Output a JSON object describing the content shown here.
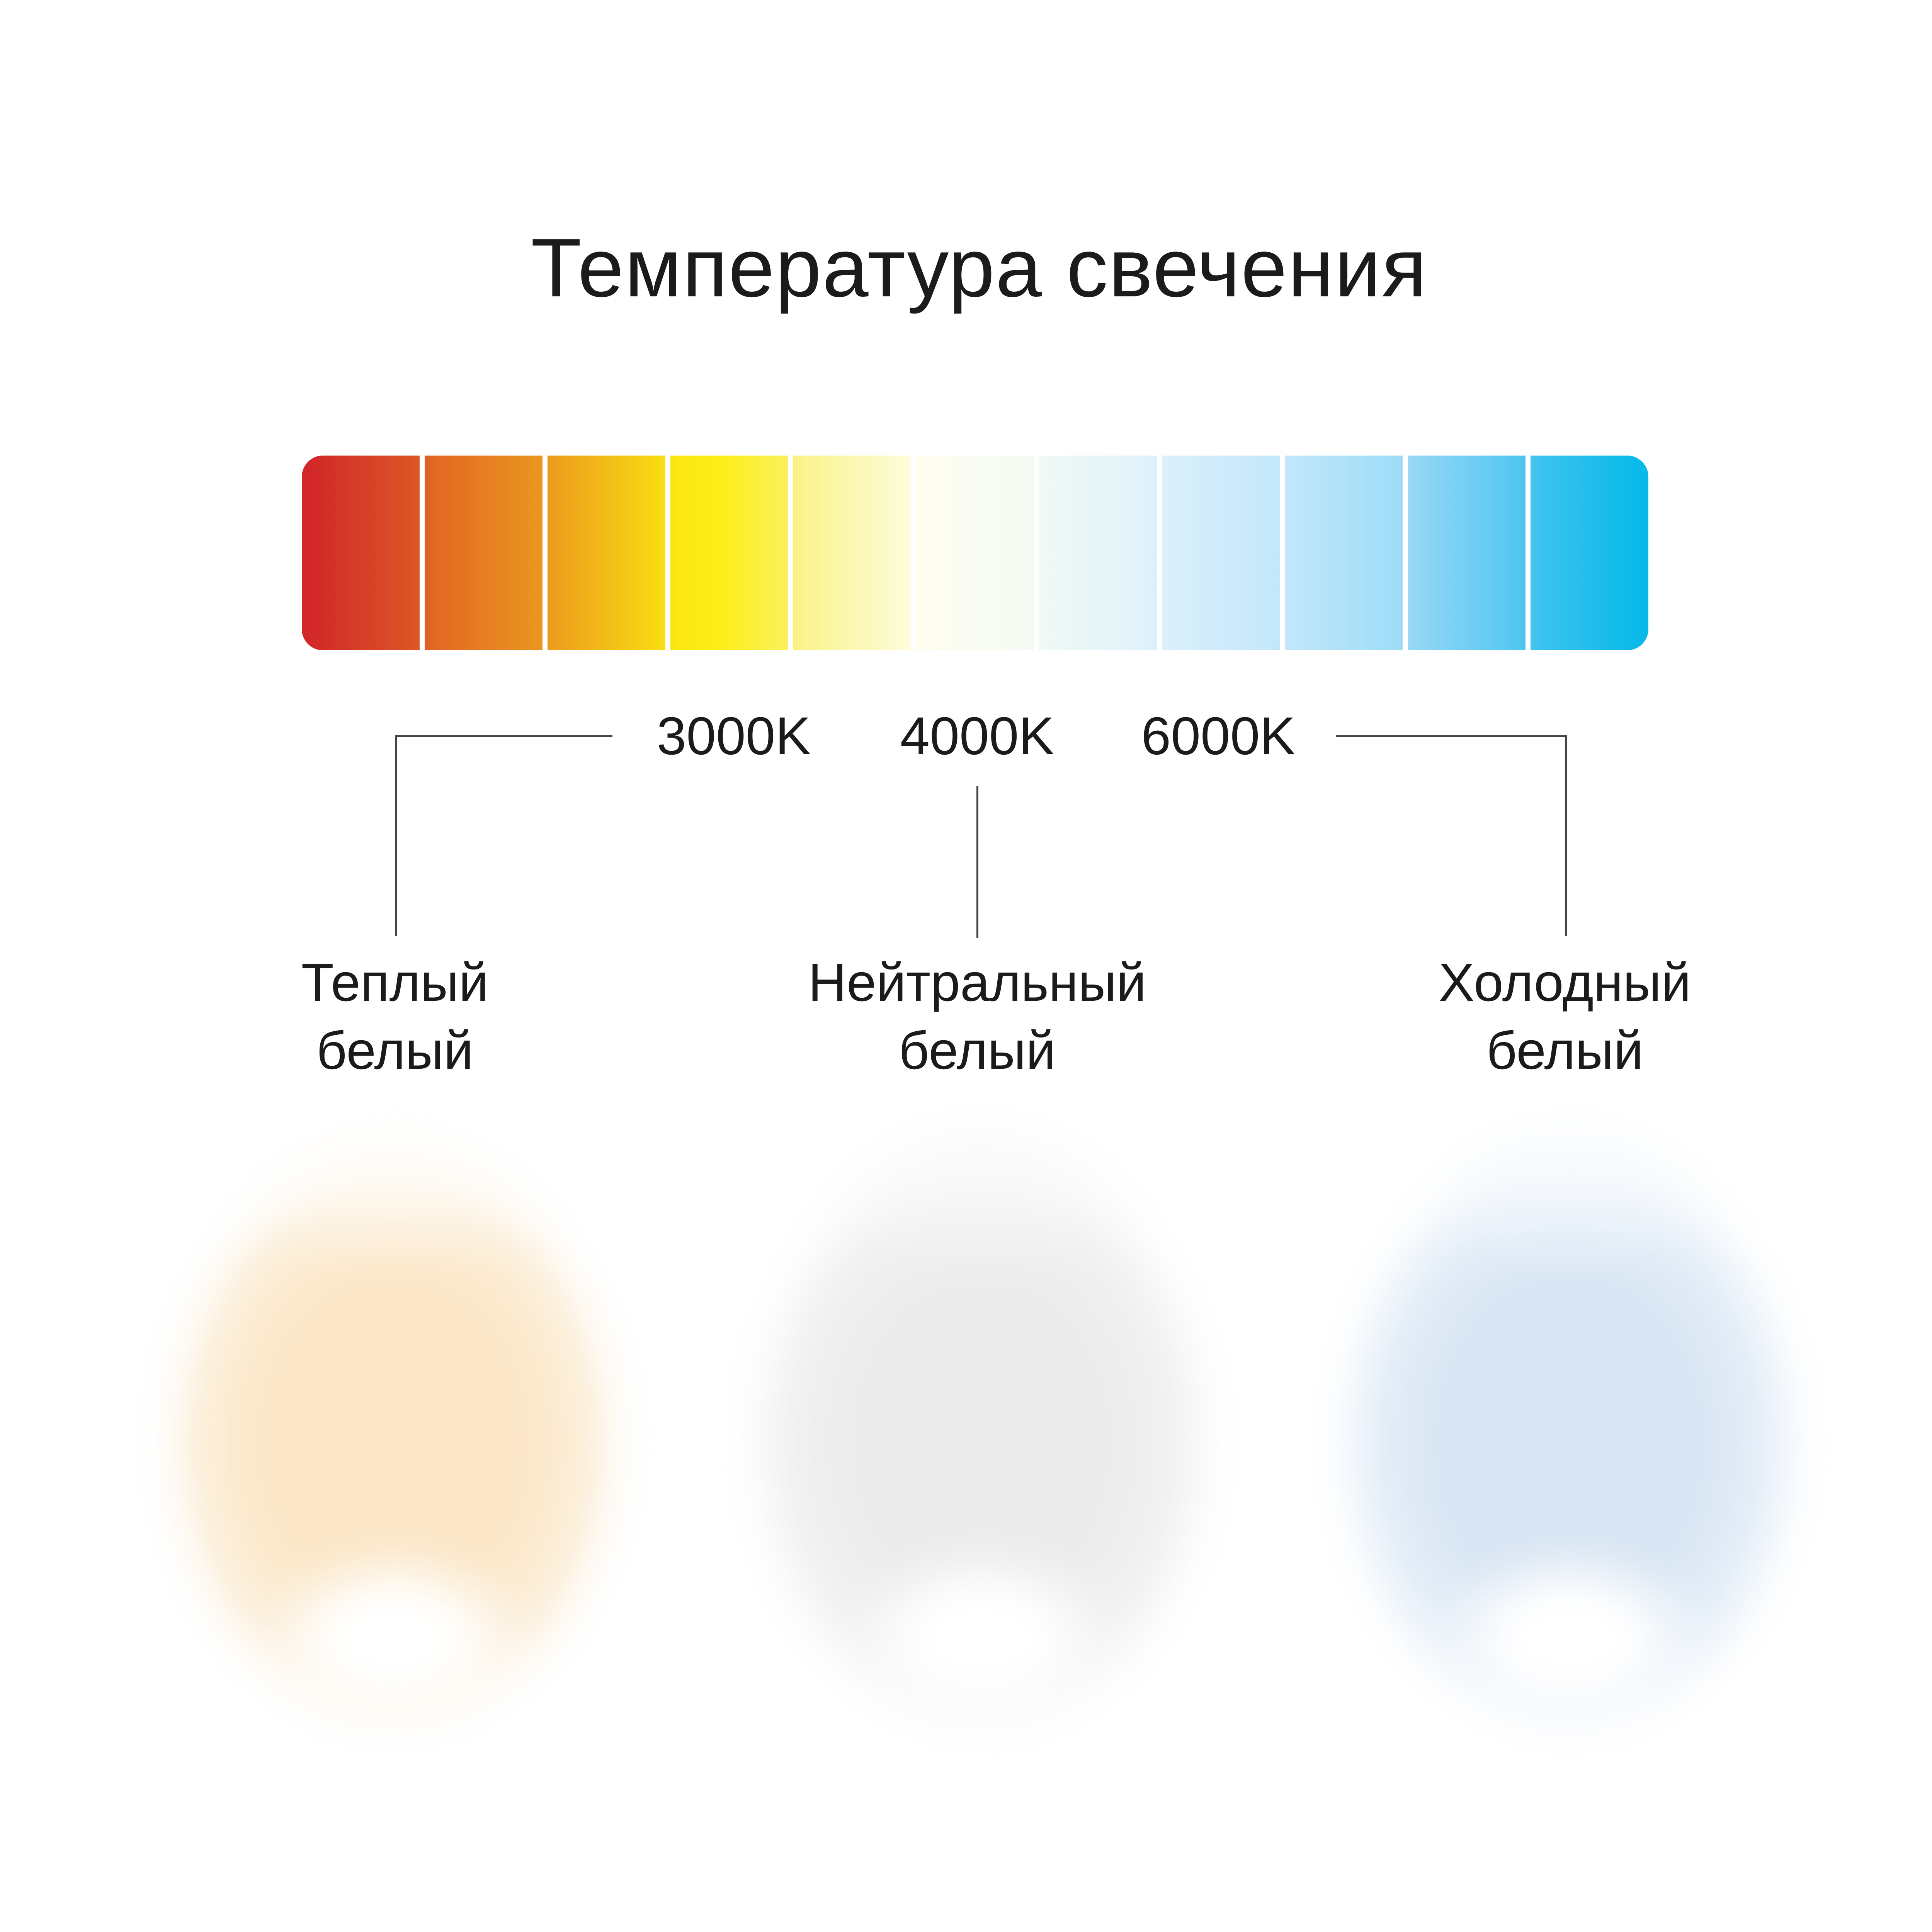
{
  "title": {
    "text": "Температура свечения"
  },
  "gradient_bar": {
    "segment_count": 11,
    "separator_color": "#ffffff",
    "stop_colors": [
      "#d22429",
      "#e26a23",
      "#ea9420",
      "#f8da12",
      "#fdee16",
      "#faf38c",
      "#fefdf0",
      "#eef8f6",
      "#daeffb",
      "#c0e6fa",
      "#90d6f5",
      "#3bc2ee",
      "#04b9e9"
    ]
  },
  "scale": {
    "ticks": [
      {
        "label": "3000K"
      },
      {
        "label": "4000K"
      },
      {
        "label": "6000K"
      }
    ]
  },
  "categories": [
    {
      "line1": "Теплый",
      "line2": "белый",
      "kelvin": "3000K",
      "glow_color": "#fbe6c6"
    },
    {
      "line1": "Нейтральный",
      "line2": "белый",
      "kelvin": "4000K",
      "glow_color": "#ebebec"
    },
    {
      "line1": "Холодный",
      "line2": "белый",
      "kelvin": "6000K",
      "glow_color": "#d8e5f3"
    }
  ],
  "colors": {
    "background": "#ffffff",
    "text": "#1b1b1b",
    "connector_line": "#454547"
  }
}
